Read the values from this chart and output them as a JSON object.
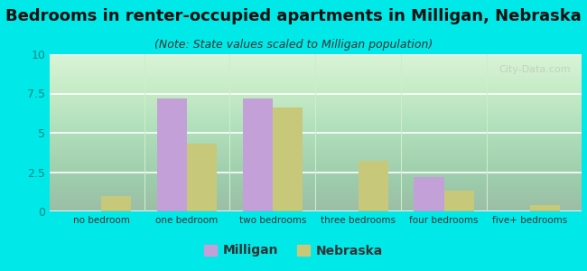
{
  "title": "Bedrooms in renter-occupied apartments in Milligan, Nebraska",
  "subtitle": "(Note: State values scaled to Milligan population)",
  "categories": [
    "no bedroom",
    "one bedroom",
    "two bedrooms",
    "three bedrooms",
    "four bedrooms",
    "five+ bedrooms"
  ],
  "milligan_values": [
    0,
    7.2,
    7.2,
    0,
    2.2,
    0
  ],
  "nebraska_values": [
    1.0,
    4.3,
    6.6,
    3.2,
    1.3,
    0.4
  ],
  "milligan_color": "#c4a0d8",
  "nebraska_color": "#c8c87a",
  "background_color": "#00e8e8",
  "ylim": [
    0,
    10
  ],
  "yticks": [
    0,
    2.5,
    5,
    7.5,
    10
  ],
  "bar_width": 0.35,
  "title_fontsize": 13,
  "subtitle_fontsize": 9,
  "legend_label_milligan": "Milligan",
  "legend_label_nebraska": "Nebraska",
  "watermark": "City-Data.com",
  "ytick_color": "#008888",
  "xtick_color": "#333333",
  "grid_color": "#ddeecc"
}
